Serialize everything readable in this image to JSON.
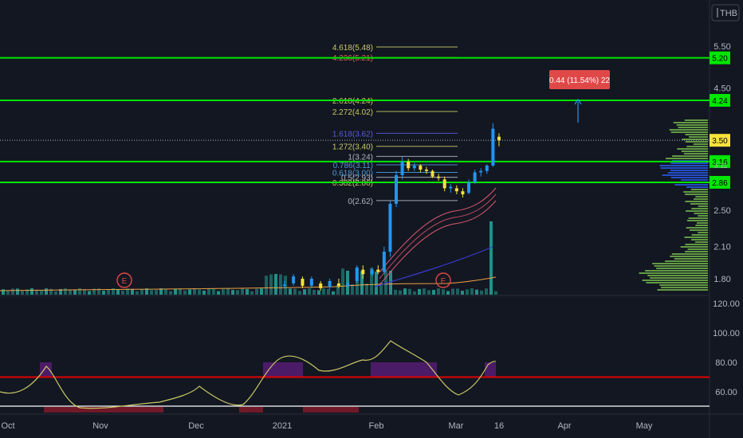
{
  "currency": "THB",
  "chart_data": [
    {
      "type": "candlestick",
      "title": "",
      "currency": "THB",
      "y_ticks": [
        "5.50",
        "4.50",
        "2.50",
        "2.10",
        "1.80"
      ],
      "ylim": [
        1.62,
        5.9
      ],
      "scale": "log",
      "x_ticks": [
        "Oct",
        "Nov",
        "Dec",
        "2021",
        "Feb",
        "Mar",
        "16",
        "Apr",
        "May"
      ],
      "last_price": "3.50",
      "horizontal_levels": [
        {
          "label": "5.20",
          "value": 5.2,
          "color": "#00e600"
        },
        {
          "label": "4.24",
          "value": 4.24,
          "color": "#00e600"
        },
        {
          "label": "3.16",
          "value": 3.16,
          "color": "#00e600"
        },
        {
          "label": "2.86",
          "value": 2.86,
          "color": "#00e600"
        }
      ],
      "price_label_partial": "3.11",
      "fibonacci": [
        {
          "label": "4.618(5.48)",
          "value": 5.48,
          "color": "#c8c864"
        },
        {
          "label": "4.236(5.21)",
          "value": 5.21,
          "color": "#e05a5a"
        },
        {
          "label": "2.618(4.24)",
          "value": 4.24,
          "color": "#c8c864"
        },
        {
          "label": "2.272(4.02)",
          "value": 4.02,
          "color": "#c8c864"
        },
        {
          "label": "1.618(3.62)",
          "value": 3.62,
          "color": "#5a5adc"
        },
        {
          "label": "1.272(3.40)",
          "value": 3.4,
          "color": "#c8c864"
        },
        {
          "label": "1(3.24)",
          "value": 3.24,
          "color": "#b2b5be"
        },
        {
          "label": "0.786(3.11)",
          "value": 3.11,
          "color": "#4a9bd8"
        },
        {
          "label": "0.618(3.00)",
          "value": 3.0,
          "color": "#4a9bd8"
        },
        {
          "label": "0.5(2.93)",
          "value": 2.93,
          "color": "#b2b5be"
        },
        {
          "label": "0.382(2.86)",
          "value": 2.86,
          "color": "#c8c864"
        },
        {
          "label": "0(2.62)",
          "value": 2.62,
          "color": "#b2b5be"
        }
      ],
      "measure_label": "0.44 (11.54%) 22",
      "earnings_markers": [
        "E",
        "E"
      ],
      "candles": [
        {
          "date": "2021-01-02",
          "o": 1.74,
          "h": 1.78,
          "l": 1.72,
          "c": 1.75
        },
        {
          "date": "2021-01-05",
          "o": 1.76,
          "h": 1.84,
          "l": 1.74,
          "c": 1.82
        },
        {
          "date": "2021-01-08",
          "o": 1.8,
          "h": 1.82,
          "l": 1.72,
          "c": 1.74
        },
        {
          "date": "2021-01-11",
          "o": 1.74,
          "h": 1.82,
          "l": 1.72,
          "c": 1.8
        },
        {
          "date": "2021-01-14",
          "o": 1.76,
          "h": 1.78,
          "l": 1.7,
          "c": 1.72
        },
        {
          "date": "2021-01-17",
          "o": 1.73,
          "h": 1.8,
          "l": 1.71,
          "c": 1.78
        },
        {
          "date": "2021-01-20",
          "o": 1.76,
          "h": 1.8,
          "l": 1.72,
          "c": 1.74
        },
        {
          "date": "2021-01-23",
          "o": 1.74,
          "h": 1.78,
          "l": 1.72,
          "c": 1.76
        },
        {
          "date": "2021-01-26",
          "o": 1.78,
          "h": 1.92,
          "l": 1.76,
          "c": 1.9
        },
        {
          "date": "2021-01-28",
          "o": 1.88,
          "h": 1.92,
          "l": 1.8,
          "c": 1.84
        },
        {
          "date": "2021-01-31",
          "o": 1.84,
          "h": 1.9,
          "l": 1.82,
          "c": 1.88
        },
        {
          "date": "2021-02-02",
          "o": 1.88,
          "h": 1.92,
          "l": 1.84,
          "c": 1.86
        },
        {
          "date": "2021-02-04",
          "o": 1.86,
          "h": 2.1,
          "l": 1.84,
          "c": 2.05
        },
        {
          "date": "2021-02-06",
          "o": 2.05,
          "h": 2.62,
          "l": 2.0,
          "c": 2.58
        },
        {
          "date": "2021-02-08",
          "o": 2.58,
          "h": 3.02,
          "l": 2.54,
          "c": 2.96
        },
        {
          "date": "2021-02-10",
          "o": 2.96,
          "h": 3.24,
          "l": 2.9,
          "c": 3.16
        },
        {
          "date": "2021-02-12",
          "o": 3.16,
          "h": 3.2,
          "l": 3.02,
          "c": 3.06
        },
        {
          "date": "2021-02-14",
          "o": 3.06,
          "h": 3.14,
          "l": 3.02,
          "c": 3.1
        },
        {
          "date": "2021-02-16",
          "o": 3.1,
          "h": 3.12,
          "l": 3.0,
          "c": 3.04
        },
        {
          "date": "2021-02-18",
          "o": 3.04,
          "h": 3.08,
          "l": 2.98,
          "c": 3.02
        },
        {
          "date": "2021-02-20",
          "o": 3.02,
          "h": 3.04,
          "l": 2.92,
          "c": 2.94
        },
        {
          "date": "2021-02-22",
          "o": 2.94,
          "h": 2.98,
          "l": 2.88,
          "c": 2.92
        },
        {
          "date": "2021-02-24",
          "o": 2.9,
          "h": 2.94,
          "l": 2.74,
          "c": 2.78
        },
        {
          "date": "2021-02-26",
          "o": 2.78,
          "h": 2.84,
          "l": 2.72,
          "c": 2.8
        },
        {
          "date": "2021-02-28",
          "o": 2.78,
          "h": 2.82,
          "l": 2.7,
          "c": 2.74
        },
        {
          "date": "2021-03-02",
          "o": 2.74,
          "h": 2.78,
          "l": 2.66,
          "c": 2.7
        },
        {
          "date": "2021-03-04",
          "o": 2.72,
          "h": 2.9,
          "l": 2.7,
          "c": 2.86
        },
        {
          "date": "2021-03-06",
          "o": 2.86,
          "h": 3.04,
          "l": 2.84,
          "c": 3.0
        },
        {
          "date": "2021-03-08",
          "o": 3.0,
          "h": 3.06,
          "l": 2.94,
          "c": 3.02
        },
        {
          "date": "2021-03-10",
          "o": 3.02,
          "h": 3.12,
          "l": 2.98,
          "c": 3.1
        },
        {
          "date": "2021-03-12",
          "o": 3.1,
          "h": 3.8,
          "l": 3.08,
          "c": 3.7
        },
        {
          "date": "2021-03-14",
          "o": 3.56,
          "h": 3.62,
          "l": 3.4,
          "c": 3.5
        }
      ],
      "rsi": {
        "y_ticks": [
          "120.00",
          "100.00",
          "80.00",
          "60.00"
        ],
        "ylim": [
          46,
          124
        ],
        "red_level": 70
      }
    }
  ]
}
